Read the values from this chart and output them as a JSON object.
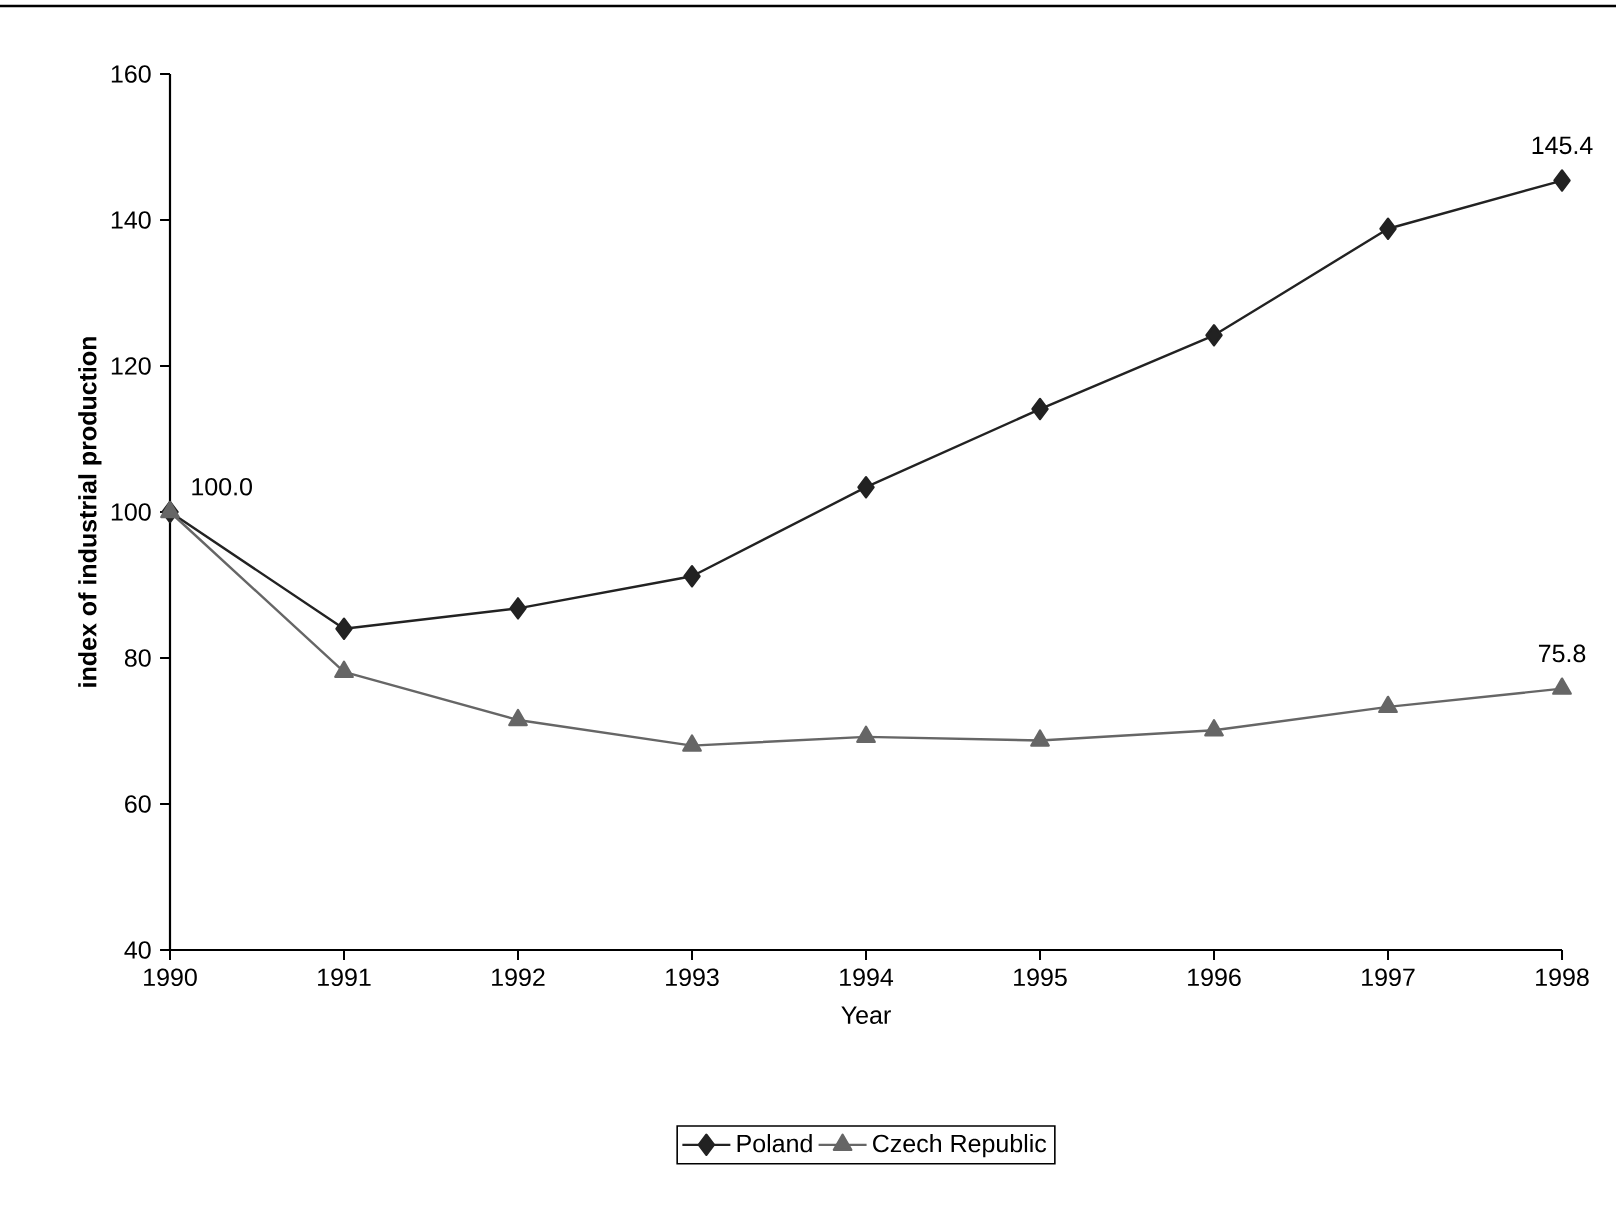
{
  "chart_data": {
    "type": "line",
    "xlabel": "Year",
    "ylabel": "index of industrial production",
    "x": [
      1990,
      1991,
      1992,
      1993,
      1994,
      1995,
      1996,
      1997,
      1998
    ],
    "xlim": [
      1990,
      1998
    ],
    "xticks": [
      1990,
      1991,
      1992,
      1993,
      1994,
      1995,
      1996,
      1997,
      1998
    ],
    "ylim": [
      40,
      160
    ],
    "yticks": [
      40,
      60,
      80,
      100,
      120,
      140,
      160
    ],
    "series": [
      {
        "name": "Poland",
        "color": "#222222",
        "marker": "diamond",
        "values": [
          100.0,
          84.0,
          86.8,
          91.2,
          103.4,
          114.1,
          124.2,
          138.8,
          145.4
        ],
        "value_labels": [
          "100.0",
          null,
          null,
          null,
          null,
          null,
          null,
          null,
          "145.4"
        ]
      },
      {
        "name": "Czech Republic",
        "color": "#666666",
        "marker": "triangle",
        "values": [
          100.0,
          78.1,
          71.5,
          68.0,
          69.2,
          68.7,
          70.1,
          73.3,
          75.8
        ],
        "value_labels": [
          null,
          null,
          null,
          null,
          null,
          null,
          null,
          null,
          "75.8"
        ]
      }
    ],
    "legend": "bottom",
    "grid": false
  }
}
